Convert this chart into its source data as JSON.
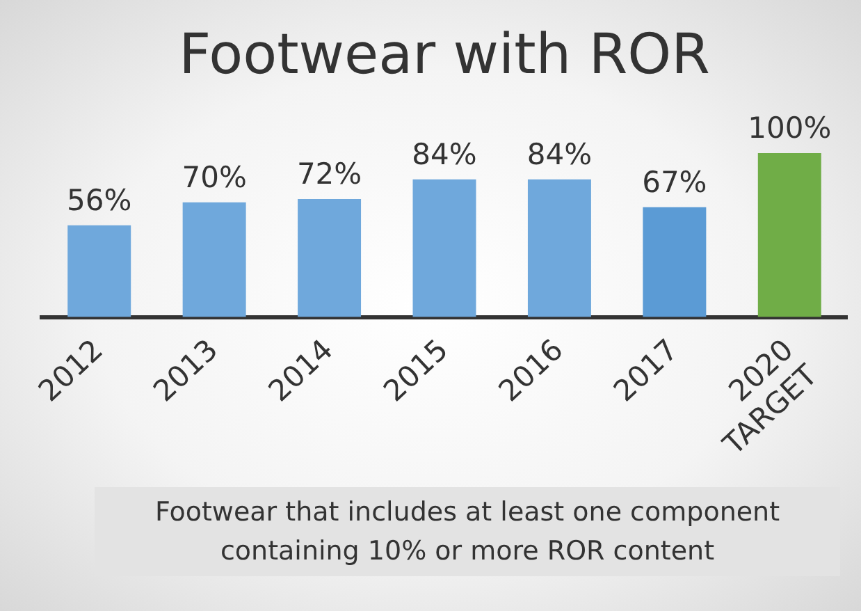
{
  "chart_data": {
    "type": "bar",
    "title": "Footwear with ROR",
    "categories": [
      "2012",
      "2013",
      "2014",
      "2015",
      "2016",
      "2017",
      "2020\nTARGET"
    ],
    "values": [
      56,
      70,
      72,
      84,
      84,
      67,
      100
    ],
    "value_labels": [
      "56%",
      "70%",
      "72%",
      "84%",
      "84%",
      "67%",
      "100%"
    ],
    "colors": [
      "#6fa8dc",
      "#6fa8dc",
      "#6fa8dc",
      "#6fa8dc",
      "#6fa8dc",
      "#5b9bd5",
      "#70ad47"
    ],
    "annotations": [
      "Footwear that includes at least one component containing 10% or more ROR content"
    ],
    "grid": false,
    "legend": false
  }
}
